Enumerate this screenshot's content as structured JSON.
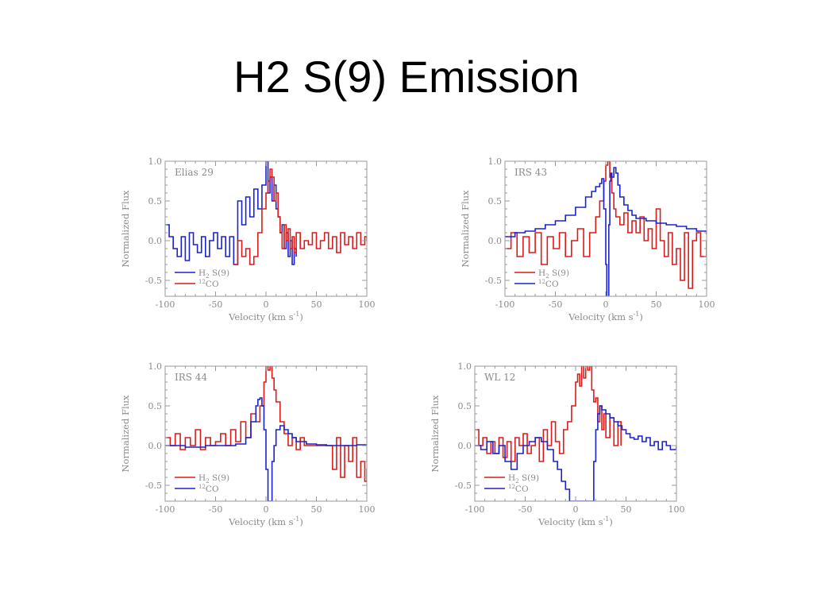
{
  "slide": {
    "title": "H2 S(9) Emission"
  },
  "colors": {
    "red": "#dd1a1a",
    "blue": "#1a22cc",
    "axis": "#9a9a9a"
  },
  "chart_data": [
    {
      "type": "line",
      "title": "Elias 29",
      "xlabel": "Velocity (km s^-1)",
      "ylabel": "Normalized Flux",
      "xlim": [
        -100,
        100
      ],
      "ylim": [
        -0.7,
        1.0
      ],
      "xticks": [
        -100,
        -50,
        0,
        50,
        100
      ],
      "yticks": [
        -0.5,
        0.0,
        0.5,
        1.0
      ],
      "legend": "bottom-left",
      "series": [
        {
          "name": "H2 S(9)",
          "color": "#1a22cc",
          "step": true,
          "x": [
            -100,
            -96,
            -92,
            -88,
            -84,
            -80,
            -76,
            -72,
            -68,
            -64,
            -60,
            -56,
            -52,
            -48,
            -44,
            -40,
            -36,
            -32,
            -28,
            -24,
            -20,
            -16,
            -12,
            -8,
            -4,
            0,
            2,
            4,
            6,
            8,
            10,
            12,
            14,
            16,
            18,
            20,
            22,
            24,
            26,
            28,
            30
          ],
          "y": [
            0.2,
            0.05,
            -0.1,
            -0.2,
            0.05,
            -0.25,
            0.1,
            -0.05,
            -0.15,
            0.05,
            -0.2,
            0.0,
            0.1,
            -0.1,
            0.05,
            -0.2,
            0.05,
            -0.3,
            0.5,
            0.2,
            0.55,
            0.3,
            0.65,
            0.4,
            0.7,
            1.0,
            0.6,
            0.8,
            0.5,
            0.7,
            0.4,
            0.3,
            0.1,
            0.2,
            -0.1,
            0.1,
            -0.2,
            0.0,
            -0.3,
            -0.1,
            -0.2
          ]
        },
        {
          "name": "12CO",
          "color": "#dd1a1a",
          "step": true,
          "x": [
            -32,
            -28,
            -24,
            -20,
            -16,
            -12,
            -8,
            -4,
            0,
            2,
            4,
            6,
            8,
            10,
            12,
            14,
            16,
            18,
            20,
            22,
            24,
            26,
            28,
            30,
            34,
            38,
            42,
            46,
            50,
            54,
            58,
            62,
            66,
            70,
            74,
            78,
            82,
            86,
            90,
            94,
            98,
            100
          ],
          "y": [
            -0.3,
            0.0,
            -0.2,
            -0.1,
            -0.3,
            -0.2,
            0.1,
            0.4,
            0.6,
            0.75,
            0.9,
            0.8,
            0.5,
            0.6,
            0.3,
            0.1,
            -0.1,
            0.2,
            0.0,
            0.15,
            -0.1,
            0.05,
            -0.15,
            0.1,
            -0.1,
            0.0,
            -0.05,
            0.1,
            -0.1,
            0.0,
            0.1,
            -0.1,
            0.05,
            -0.15,
            0.1,
            -0.05,
            0.05,
            -0.1,
            0.1,
            -0.05,
            0.05,
            0.0
          ]
        }
      ]
    },
    {
      "type": "line",
      "title": "IRS 43",
      "xlabel": "Velocity (km s^-1)",
      "ylabel": "Normalized Flux",
      "xlim": [
        -100,
        100
      ],
      "ylim": [
        -0.7,
        1.0
      ],
      "xticks": [
        -100,
        -50,
        0,
        50,
        100
      ],
      "yticks": [
        -0.5,
        0.0,
        0.5,
        1.0
      ],
      "legend": "bottom-left",
      "series": [
        {
          "name": "H2 S(9)",
          "color": "#dd1a1a",
          "step": true,
          "x": [
            -100,
            -94,
            -88,
            -82,
            -76,
            -70,
            -64,
            -58,
            -52,
            -46,
            -40,
            -34,
            -28,
            -22,
            -16,
            -10,
            -6,
            -2,
            0,
            2,
            4,
            6,
            8,
            10,
            14,
            18,
            22,
            26,
            30,
            34,
            38,
            42,
            46,
            50,
            54,
            58,
            62,
            66,
            70,
            74,
            78,
            82,
            86,
            90,
            94,
            100
          ],
          "y": [
            -0.1,
            0.1,
            -0.2,
            0.05,
            -0.15,
            0.1,
            -0.3,
            0.05,
            -0.1,
            0.1,
            -0.2,
            0.0,
            0.15,
            -0.2,
            0.1,
            0.3,
            0.5,
            0.75,
            0.95,
            1.0,
            0.8,
            0.6,
            0.4,
            0.3,
            0.2,
            0.35,
            0.1,
            0.25,
            0.1,
            0.3,
            0.0,
            0.15,
            -0.1,
            0.4,
            0.0,
            -0.2,
            0.1,
            -0.3,
            -0.1,
            -0.5,
            0.1,
            -0.6,
            0.0,
            0.1,
            -0.2,
            0.0
          ]
        },
        {
          "name": "12CO",
          "color": "#1a22cc",
          "step": true,
          "x": [
            -100,
            -90,
            -80,
            -70,
            -60,
            -50,
            -40,
            -30,
            -20,
            -14,
            -10,
            -6,
            -4,
            -2,
            0,
            1,
            2,
            3,
            4,
            5,
            6,
            8,
            10,
            12,
            14,
            18,
            22,
            26,
            30,
            40,
            50,
            60,
            70,
            80,
            90,
            100
          ],
          "y": [
            0.05,
            0.1,
            0.12,
            0.15,
            0.2,
            0.25,
            0.32,
            0.42,
            0.55,
            0.62,
            0.68,
            0.72,
            0.78,
            0.4,
            -0.3,
            -0.75,
            -0.75,
            0.2,
            0.75,
            0.85,
            0.8,
            0.92,
            0.85,
            0.7,
            0.55,
            0.45,
            0.38,
            0.32,
            0.28,
            0.25,
            0.22,
            0.2,
            0.18,
            0.15,
            0.12,
            0.08
          ]
        }
      ]
    },
    {
      "type": "line",
      "title": "IRS 44",
      "xlabel": "Velocity (km s^-1)",
      "ylabel": "Normalized Flux",
      "xlim": [
        -100,
        100
      ],
      "ylim": [
        -0.7,
        1.0
      ],
      "xticks": [
        -100,
        -50,
        0,
        50,
        100
      ],
      "yticks": [
        -0.5,
        0.0,
        0.5,
        1.0
      ],
      "legend": "bottom-left",
      "series": [
        {
          "name": "H2 S(9)",
          "color": "#dd1a1a",
          "step": true,
          "x": [
            -100,
            -95,
            -90,
            -85,
            -80,
            -75,
            -70,
            -65,
            -60,
            -55,
            -50,
            -45,
            -40,
            -35,
            -30,
            -25,
            -20,
            -15,
            -10,
            -6,
            -2,
            0,
            2,
            4,
            6,
            8,
            10,
            14,
            18,
            22,
            26,
            30,
            34,
            38,
            62,
            66,
            70,
            74,
            78,
            82,
            86,
            90,
            94,
            98,
            100
          ],
          "y": [
            0.1,
            0.0,
            0.15,
            -0.05,
            0.1,
            0.0,
            0.2,
            -0.05,
            0.1,
            0.0,
            0.05,
            0.15,
            0.0,
            0.2,
            0.05,
            0.3,
            0.1,
            0.4,
            0.3,
            0.5,
            0.8,
            1.0,
            0.95,
            1.0,
            0.85,
            0.7,
            0.55,
            0.3,
            0.15,
            0.0,
            0.1,
            -0.05,
            0.1,
            0.0,
            0.0,
            -0.3,
            0.1,
            -0.4,
            0.0,
            -0.2,
            0.1,
            -0.4,
            -0.2,
            -0.45,
            -0.3
          ]
        },
        {
          "name": "12CO",
          "color": "#1a22cc",
          "step": true,
          "x": [
            -100,
            -80,
            -60,
            -40,
            -30,
            -20,
            -15,
            -10,
            -8,
            -6,
            -4,
            -2,
            0,
            2,
            4,
            6,
            8,
            10,
            14,
            18,
            22,
            26,
            30,
            40,
            50,
            60,
            70,
            80,
            90,
            100
          ],
          "y": [
            0.0,
            -0.02,
            0.0,
            0.0,
            0.02,
            0.1,
            0.3,
            0.5,
            0.58,
            0.6,
            0.5,
            0.2,
            -0.3,
            -0.7,
            -0.7,
            -0.2,
            0.0,
            0.2,
            0.25,
            0.2,
            0.15,
            0.1,
            0.05,
            0.02,
            0.01,
            0.0,
            0.0,
            0.0,
            0.01,
            0.0
          ]
        }
      ]
    },
    {
      "type": "line",
      "title": "WL 12",
      "xlabel": "Velocity (km s^-1)",
      "ylabel": "Normalized Flux",
      "xlim": [
        -100,
        100
      ],
      "ylim": [
        -0.7,
        1.0
      ],
      "xticks": [
        -100,
        -50,
        0,
        50,
        100
      ],
      "yticks": [
        -0.5,
        0.0,
        0.5,
        1.0
      ],
      "legend": "bottom-left",
      "series": [
        {
          "name": "H2 S(9)",
          "color": "#dd1a1a",
          "step": true,
          "x": [
            -100,
            -96,
            -92,
            -88,
            -84,
            -80,
            -76,
            -72,
            -68,
            -64,
            -60,
            -56,
            -52,
            -48,
            -44,
            -40,
            -36,
            -32,
            -28,
            -24,
            -20,
            -16,
            -12,
            -8,
            -4,
            0,
            2,
            4,
            6,
            8,
            10,
            12,
            14,
            16,
            18,
            20,
            22,
            24,
            26,
            28,
            30,
            34,
            38,
            42,
            45
          ],
          "y": [
            0.2,
            0.0,
            0.1,
            -0.1,
            0.05,
            -0.1,
            0.1,
            -0.15,
            0.05,
            -0.2,
            0.1,
            0.0,
            0.15,
            -0.1,
            0.0,
            0.1,
            -0.2,
            0.2,
            0.0,
            0.3,
            0.05,
            -0.1,
            0.2,
            0.3,
            0.5,
            0.8,
            0.9,
            0.75,
            1.0,
            0.85,
            1.0,
            0.95,
            1.0,
            0.7,
            0.55,
            0.6,
            0.3,
            0.5,
            0.2,
            0.4,
            0.1,
            0.35,
            0.0,
            0.3,
            0.0
          ]
        },
        {
          "name": "12CO",
          "color": "#1a22cc",
          "step": true,
          "x": [
            -100,
            -94,
            -88,
            -82,
            -76,
            -70,
            -64,
            -58,
            -52,
            -46,
            -40,
            -34,
            -28,
            -22,
            -18,
            -14,
            -10,
            -6,
            -2,
            0,
            4,
            8,
            12,
            16,
            18,
            20,
            22,
            24,
            26,
            30,
            34,
            38,
            42,
            46,
            50,
            54,
            58,
            62,
            66,
            70,
            74,
            78,
            82,
            86,
            90,
            94,
            100
          ],
          "y": [
            0.0,
            -0.05,
            0.05,
            -0.1,
            0.0,
            -0.2,
            -0.3,
            -0.1,
            0.0,
            0.05,
            0.1,
            0.05,
            -0.05,
            -0.2,
            -0.3,
            -0.45,
            -0.55,
            -0.7,
            -0.7,
            -0.7,
            -0.7,
            -0.7,
            -0.7,
            -0.7,
            -0.2,
            0.2,
            0.4,
            0.5,
            0.45,
            0.4,
            0.35,
            0.3,
            0.25,
            0.2,
            0.15,
            0.1,
            0.08,
            0.12,
            0.05,
            0.1,
            0.0,
            0.05,
            -0.05,
            0.05,
            0.0,
            -0.05,
            0.0
          ]
        }
      ]
    }
  ]
}
